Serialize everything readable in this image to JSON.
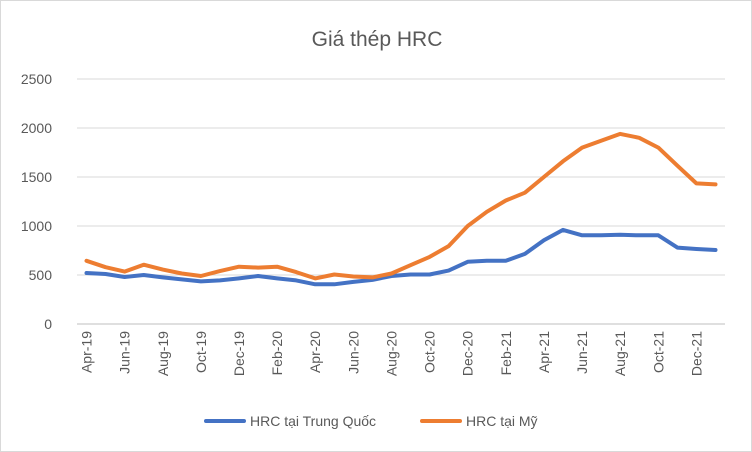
{
  "chart_data": {
    "type": "line",
    "title": "Giá thép HRC",
    "xlabel": "",
    "ylabel": "",
    "ylim": [
      0,
      2500
    ],
    "yticks": [
      "0",
      "500",
      "1000",
      "1500",
      "2000",
      "2500"
    ],
    "grid": true,
    "legend_position": "bottom",
    "x": [
      "Apr-19",
      "May-19",
      "Jun-19",
      "Jul-19",
      "Aug-19",
      "Sep-19",
      "Oct-19",
      "Nov-19",
      "Dec-19",
      "Jan-20",
      "Feb-20",
      "Mar-20",
      "Apr-20",
      "May-20",
      "Jun-20",
      "Jul-20",
      "Aug-20",
      "Sep-20",
      "Oct-20",
      "Nov-20",
      "Dec-20",
      "Jan-21",
      "Feb-21",
      "Mar-21",
      "Apr-21",
      "May-21",
      "Jun-21",
      "Jul-21",
      "Aug-21",
      "Sep-21",
      "Oct-21",
      "Nov-21",
      "Dec-21",
      "Jan-22"
    ],
    "x_tick_labels": [
      "Apr-19",
      "",
      "Jun-19",
      "",
      "Aug-19",
      "",
      "Oct-19",
      "",
      "Dec-19",
      "",
      "Feb-20",
      "",
      "Apr-20",
      "",
      "Jun-20",
      "",
      "Aug-20",
      "",
      "Oct-20",
      "",
      "Dec-20",
      "",
      "Feb-21",
      "",
      "Apr-21",
      "",
      "Jun-21",
      "",
      "Aug-21",
      "",
      "Oct-21",
      "",
      "Dec-21",
      ""
    ],
    "series": [
      {
        "name": "HRC tại Trung Quốc",
        "color": "#4472c4",
        "values": [
          520,
          510,
          480,
          500,
          475,
          455,
          435,
          445,
          465,
          490,
          465,
          445,
          405,
          405,
          430,
          450,
          490,
          505,
          505,
          545,
          635,
          645,
          645,
          715,
          855,
          960,
          905,
          905,
          910,
          905,
          905,
          780,
          765,
          755
        ]
      },
      {
        "name": "HRC tại Mỹ",
        "color": "#ed7d31",
        "values": [
          645,
          580,
          535,
          605,
          555,
          515,
          490,
          540,
          585,
          575,
          585,
          530,
          465,
          505,
          485,
          475,
          515,
          600,
          685,
          795,
          1000,
          1145,
          1260,
          1340,
          1500,
          1660,
          1800,
          1870,
          1940,
          1900,
          1800,
          1615,
          1435,
          1425
        ]
      }
    ]
  }
}
